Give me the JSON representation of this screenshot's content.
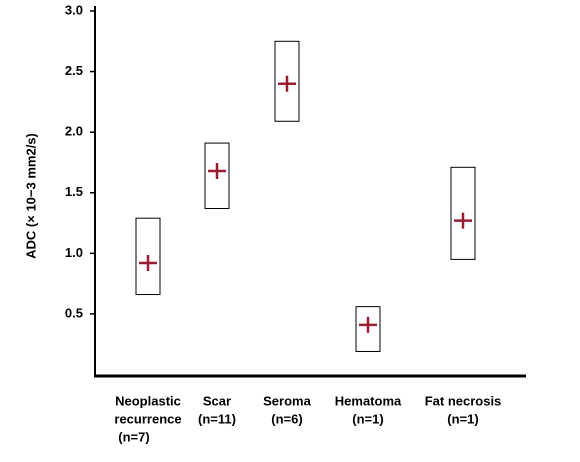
{
  "chart_data": {
    "type": "range-box",
    "y_label": "ADC (× 10−3 mm2/s)",
    "categories": [
      [
        "Neoplastic",
        "recurrence",
        "(n=7)"
      ],
      [
        "Scar",
        "(n=11)"
      ],
      [
        "Seroma",
        "(n=6)"
      ],
      [
        "Hematoma",
        "(n=1)"
      ],
      [
        "Fat necrosis",
        "(n=1)"
      ]
    ],
    "low": [
      0.66,
      1.37,
      2.09,
      0.19,
      0.95
    ],
    "high": [
      1.29,
      1.91,
      2.75,
      0.56,
      1.71
    ],
    "mean": [
      0.92,
      1.68,
      2.4,
      0.41,
      1.27
    ],
    "box_color": "#000000",
    "mean_color": "#9b1b30",
    "ylim": [
      0,
      3.0
    ],
    "yticks": [
      0.5,
      {
        "value": 1,
        "label": "1.0"
      },
      1.5,
      {
        "value": 2,
        "label": "2.0"
      },
      2.5,
      {
        "value": 3,
        "label": "3.0"
      }
    ]
  }
}
